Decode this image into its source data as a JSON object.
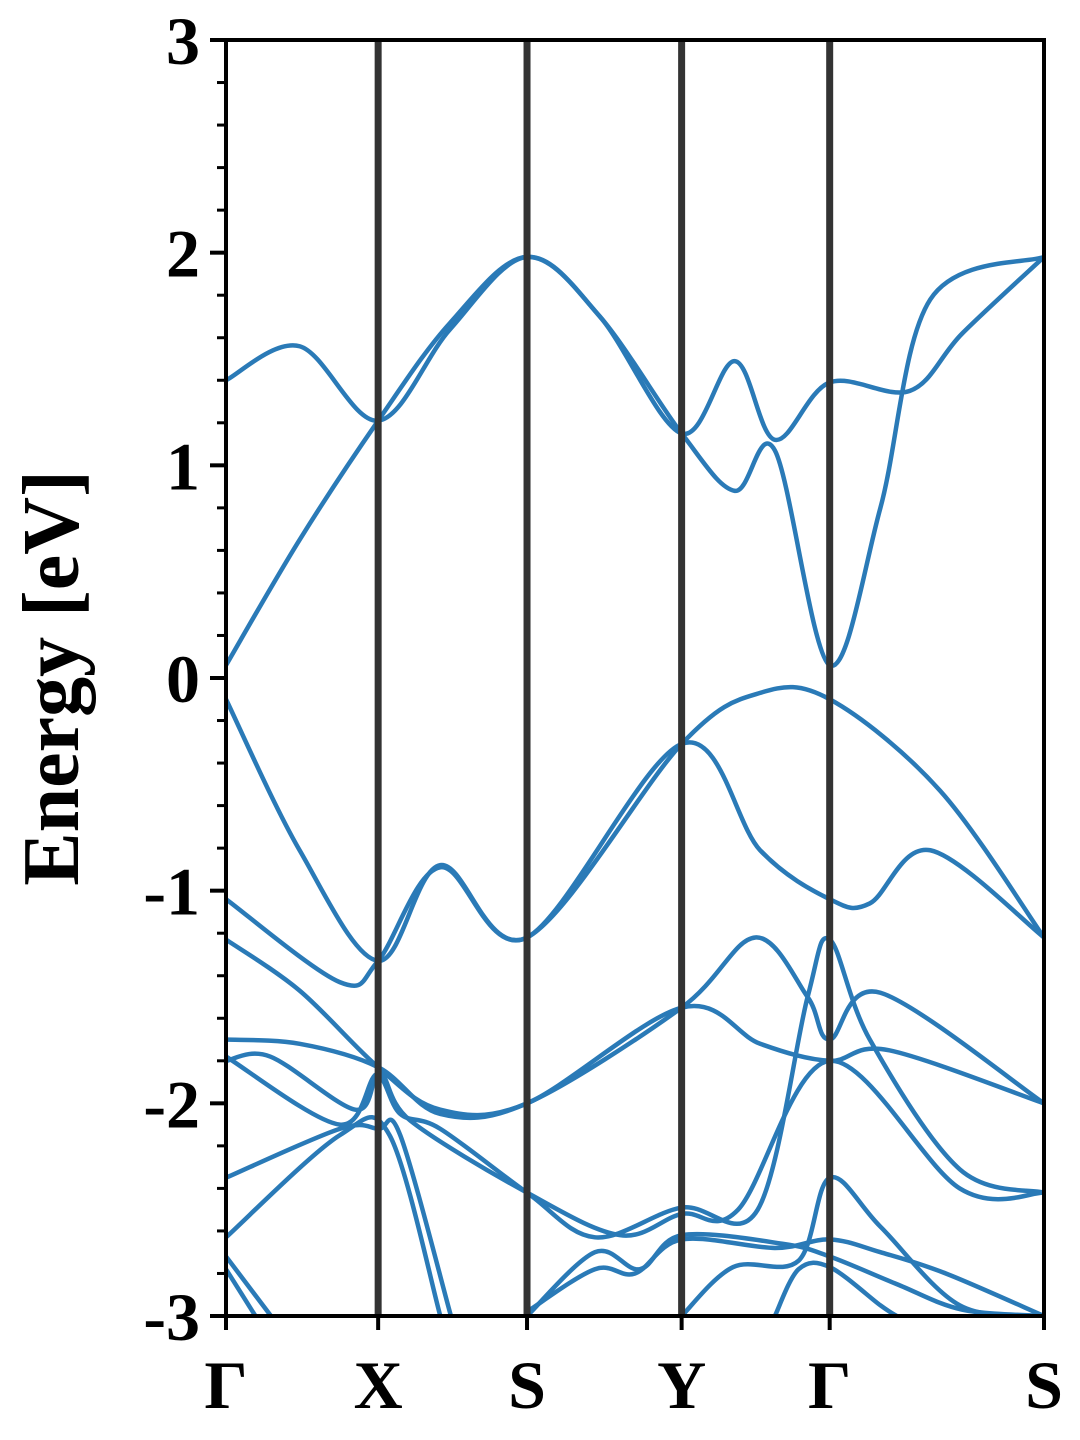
{
  "chart_data": {
    "type": "line",
    "title": "",
    "xlabel": "",
    "ylabel": "Energy [eV]",
    "ylim": [
      -3,
      3
    ],
    "xlim": [
      0,
      1
    ],
    "yticks": [
      "3",
      "2",
      "1",
      "0",
      "-1",
      "-2",
      "-3"
    ],
    "ytick_values": [
      3,
      2,
      1,
      0,
      -1,
      -2,
      -3
    ],
    "y_minor_step": 0.2,
    "xticks": [
      {
        "label": "Γ",
        "k": 0
      },
      {
        "label": "X",
        "k": 0.186
      },
      {
        "label": "S",
        "k": 0.368
      },
      {
        "label": "Y",
        "k": 0.557
      },
      {
        "label": "Γ",
        "k": 0.738
      },
      {
        "label": "S",
        "k": 1.0
      }
    ],
    "grid": false,
    "line_color": "#2a7ab7",
    "vline_color": "#333333",
    "series": [
      {
        "values": [
          [
            0,
            0.06
          ],
          [
            0.09,
            0.65
          ],
          [
            0.186,
            1.21
          ],
          [
            0.274,
            1.67
          ],
          [
            0.368,
            1.98
          ],
          [
            0.457,
            1.7
          ],
          [
            0.557,
            1.15
          ],
          [
            0.622,
            0.88
          ],
          [
            0.671,
            1.07
          ],
          [
            0.738,
            0.06
          ],
          [
            0.8,
            0.8
          ],
          [
            0.861,
            1.78
          ],
          [
            1,
            1.98
          ]
        ]
      },
      {
        "values": [
          [
            0,
            1.4
          ],
          [
            0.09,
            1.56
          ],
          [
            0.186,
            1.21
          ],
          [
            0.274,
            1.64
          ],
          [
            0.368,
            1.98
          ],
          [
            0.457,
            1.7
          ],
          [
            0.557,
            1.15
          ],
          [
            0.622,
            1.49
          ],
          [
            0.671,
            1.12
          ],
          [
            0.738,
            1.39
          ],
          [
            0.836,
            1.35
          ],
          [
            0.9,
            1.62
          ],
          [
            1,
            1.98
          ]
        ]
      },
      {
        "values": [
          [
            0,
            -0.1
          ],
          [
            0.09,
            -0.81
          ],
          [
            0.186,
            -1.33
          ],
          [
            0.262,
            -0.88
          ],
          [
            0.368,
            -1.22
          ],
          [
            0.557,
            -0.31
          ],
          [
            0.653,
            -0.07
          ],
          [
            0.738,
            -0.1
          ],
          [
            0.873,
            -0.53
          ],
          [
            1,
            -1.22
          ]
        ]
      },
      {
        "values": [
          [
            0,
            -1.04
          ],
          [
            0.139,
            -1.43
          ],
          [
            0.186,
            -1.33
          ],
          [
            0.262,
            -0.89
          ],
          [
            0.368,
            -1.22
          ],
          [
            0.557,
            -0.31
          ],
          [
            0.653,
            -0.81
          ],
          [
            0.738,
            -1.04
          ],
          [
            0.787,
            -1.06
          ],
          [
            0.861,
            -0.81
          ],
          [
            1,
            -1.22
          ]
        ]
      },
      {
        "values": [
          [
            0,
            -1.23
          ],
          [
            0.09,
            -1.47
          ],
          [
            0.186,
            -1.83
          ],
          [
            0.262,
            -2.03
          ],
          [
            0.368,
            -2.0
          ],
          [
            0.557,
            -1.55
          ],
          [
            0.653,
            -1.72
          ],
          [
            0.738,
            -1.8
          ],
          [
            0.81,
            -1.75
          ],
          [
            1,
            -2.0
          ]
        ]
      },
      {
        "values": [
          [
            0,
            -1.7
          ],
          [
            0.09,
            -1.72
          ],
          [
            0.186,
            -1.83
          ],
          [
            0.262,
            -2.05
          ],
          [
            0.368,
            -2.0
          ],
          [
            0.557,
            -1.55
          ],
          [
            0.647,
            -1.22
          ],
          [
            0.711,
            -1.5
          ],
          [
            0.738,
            -1.7
          ],
          [
            0.8,
            -1.48
          ],
          [
            1,
            -2.0
          ]
        ]
      },
      {
        "values": [
          [
            0,
            -1.8
          ],
          [
            0.054,
            -1.78
          ],
          [
            0.158,
            -2.03
          ],
          [
            0.186,
            -1.87
          ],
          [
            0.213,
            -2.05
          ],
          [
            0.262,
            -2.12
          ],
          [
            0.368,
            -2.42
          ],
          [
            0.451,
            -2.63
          ],
          [
            0.557,
            -2.49
          ],
          [
            0.65,
            -2.5
          ],
          [
            0.711,
            -1.5
          ],
          [
            0.738,
            -1.23
          ],
          [
            0.787,
            -1.7
          ],
          [
            0.897,
            -2.31
          ],
          [
            1,
            -2.42
          ]
        ]
      },
      {
        "values": [
          [
            0,
            -1.78
          ],
          [
            0.139,
            -2.1
          ],
          [
            0.186,
            -1.86
          ],
          [
            0.225,
            -2.08
          ],
          [
            0.368,
            -2.42
          ],
          [
            0.482,
            -2.62
          ],
          [
            0.557,
            -2.52
          ],
          [
            0.626,
            -2.5
          ],
          [
            0.738,
            -1.8
          ],
          [
            0.897,
            -2.4
          ],
          [
            1,
            -2.42
          ]
        ]
      },
      {
        "values": [
          [
            0,
            -2.35
          ],
          [
            0.139,
            -2.12
          ],
          [
            0.186,
            -2.12
          ],
          [
            0.213,
            -2.15
          ],
          [
            0.275,
            -3.0
          ]
        ]
      },
      {
        "values": [
          [
            0,
            -2.63
          ],
          [
            0.139,
            -2.15
          ],
          [
            0.2,
            -2.15
          ],
          [
            0.262,
            -3.0
          ]
        ]
      },
      {
        "values": [
          [
            0,
            -2.72
          ],
          [
            0.055,
            -3.0
          ]
        ]
      },
      {
        "values": [
          [
            0,
            -2.78
          ],
          [
            0.036,
            -3.0
          ]
        ]
      },
      {
        "values": [
          [
            0.368,
            -3.0
          ],
          [
            0.451,
            -2.7
          ],
          [
            0.506,
            -2.78
          ],
          [
            0.557,
            -2.62
          ],
          [
            0.68,
            -2.66
          ],
          [
            0.738,
            -2.72
          ],
          [
            0.82,
            -2.85
          ],
          [
            0.9,
            -2.97
          ],
          [
            1,
            -3.0
          ]
        ]
      },
      {
        "values": [
          [
            0.368,
            -2.98
          ],
          [
            0.451,
            -2.78
          ],
          [
            0.5,
            -2.8
          ],
          [
            0.557,
            -2.64
          ],
          [
            0.671,
            -2.68
          ],
          [
            0.738,
            -2.64
          ],
          [
            0.8,
            -2.7
          ],
          [
            0.88,
            -2.8
          ],
          [
            1,
            -3.0
          ]
        ]
      },
      {
        "values": [
          [
            0.557,
            -3.0
          ],
          [
            0.62,
            -2.77
          ],
          [
            0.7,
            -2.74
          ],
          [
            0.738,
            -2.35
          ],
          [
            0.8,
            -2.58
          ],
          [
            0.897,
            -2.95
          ],
          [
            1,
            -3.0
          ]
        ]
      },
      {
        "values": [
          [
            0.671,
            -3.0
          ],
          [
            0.7,
            -2.78
          ],
          [
            0.738,
            -2.77
          ],
          [
            0.8,
            -2.95
          ],
          [
            0.82,
            -3.0
          ]
        ]
      }
    ]
  }
}
